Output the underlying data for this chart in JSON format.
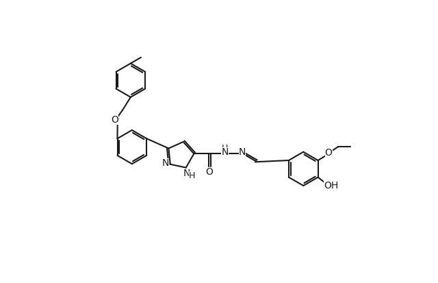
{
  "bg_color": "#ffffff",
  "line_color": "#1a1a1a",
  "line_width": 1.5,
  "font_size": 10,
  "font_size_sub": 9,
  "figsize": [
    6.4,
    4.13
  ],
  "dpi": 100,
  "xlim": [
    0,
    12
  ],
  "ylim": [
    0,
    8
  ]
}
